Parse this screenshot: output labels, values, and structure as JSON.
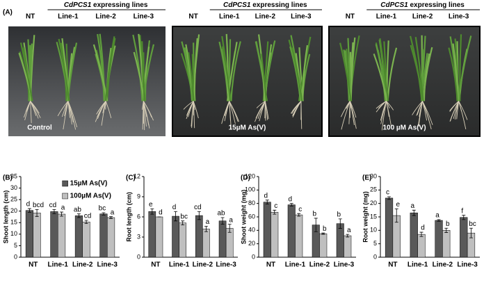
{
  "panel_a": {
    "label": "(A)",
    "photos": [
      {
        "nt": "NT",
        "header": {
          "gene": "CdPCS1",
          "text": "expressing lines"
        },
        "lines": [
          "Line-1",
          "Line-2",
          "Line-3"
        ],
        "caption": "Control"
      },
      {
        "nt": "NT",
        "header": {
          "gene": "CdPCS1",
          "text": "expressing lines"
        },
        "lines": [
          "Line-1",
          "Line-2",
          "Line-3"
        ],
        "caption": "15µM As(V)"
      },
      {
        "nt": "NT",
        "header": {
          "gene": "CdPCS1",
          "text": "expressing lines"
        },
        "lines": [
          "Line-1",
          "Line-2",
          "Line-3"
        ],
        "caption": "100 µM As(V)"
      }
    ]
  },
  "chart_data": [
    {
      "type": "bar",
      "panel": "(B)",
      "y_label": "Shoot length (cm)",
      "categories": [
        "NT",
        "Line-1",
        "Line-2",
        "Line-3"
      ],
      "ylim": [
        0,
        35
      ],
      "yticks": [
        0,
        5,
        10,
        15,
        20,
        25,
        30,
        35
      ],
      "legend": "top-right",
      "series": [
        {
          "name": "15µM As(V)",
          "color": "#595959",
          "values": [
            20.3,
            19.8,
            18.0,
            18.8
          ],
          "errors": [
            0.8,
            0.9,
            0.8,
            0.5
          ],
          "letters": [
            "d",
            "cd",
            "ab",
            "bc"
          ]
        },
        {
          "name": "100µM As(V)",
          "color": "#bfbfbf",
          "values": [
            19.2,
            18.7,
            15.3,
            17.2
          ],
          "errors": [
            1.5,
            0.9,
            0.7,
            0.4
          ],
          "letters": [
            "bcd",
            "a",
            "cd",
            "a"
          ]
        }
      ]
    },
    {
      "type": "bar",
      "panel": "(C)",
      "y_label": "Root length (cm)",
      "categories": [
        "NT",
        "Line-1",
        "Line-2",
        "Line-3"
      ],
      "ylim": [
        0,
        12
      ],
      "yticks": [
        0,
        3,
        6,
        9,
        12
      ],
      "series": [
        {
          "color": "#595959",
          "values": [
            6.8,
            6.1,
            6.2,
            5.4
          ],
          "errors": [
            0.4,
            0.7,
            0.6,
            0.5
          ],
          "letters": [
            "e",
            "d",
            "cd",
            "ab"
          ]
        },
        {
          "color": "#bfbfbf",
          "values": [
            6.0,
            5.1,
            4.2,
            4.3
          ],
          "errors": [
            0,
            0.3,
            0.4,
            0.6
          ],
          "letters": [
            "d",
            "bc",
            "a",
            "a"
          ]
        }
      ]
    },
    {
      "type": "bar",
      "panel": "(D)",
      "y_label": "Shoot weight (mg)",
      "categories": [
        "NT",
        "Line-1",
        "Line-2",
        "Line-3"
      ],
      "ylim": [
        0,
        120
      ],
      "yticks": [
        0,
        20,
        40,
        60,
        80,
        100,
        120
      ],
      "series": [
        {
          "color": "#595959",
          "values": [
            82,
            78,
            48,
            50
          ],
          "errors": [
            3,
            2,
            10,
            7
          ],
          "letters": [
            "d",
            "d",
            "b",
            "b"
          ]
        },
        {
          "color": "#bfbfbf",
          "values": [
            67,
            63,
            35,
            32
          ],
          "errors": [
            3,
            2,
            1,
            2
          ],
          "letters": [
            "c",
            "c",
            "b",
            "a"
          ]
        }
      ]
    },
    {
      "type": "bar",
      "panel": "(E)",
      "y_label": "Root weight (mg)",
      "categories": [
        "NT",
        "Line-1",
        "Line-2",
        "Line-3"
      ],
      "ylim": [
        0,
        30
      ],
      "yticks": [
        0,
        5,
        10,
        15,
        20,
        25,
        30
      ],
      "series": [
        {
          "color": "#595959",
          "values": [
            22,
            16.5,
            13.7,
            14.8
          ],
          "errors": [
            0.5,
            1,
            0.3,
            0.8
          ],
          "letters": [
            "c",
            "a",
            "a",
            "f"
          ]
        },
        {
          "color": "#bfbfbf",
          "values": [
            15.5,
            8.5,
            10,
            9
          ],
          "errors": [
            2.5,
            0.8,
            0.8,
            1.8
          ],
          "letters": [
            "e",
            "d",
            "b",
            "bc"
          ]
        }
      ]
    }
  ]
}
